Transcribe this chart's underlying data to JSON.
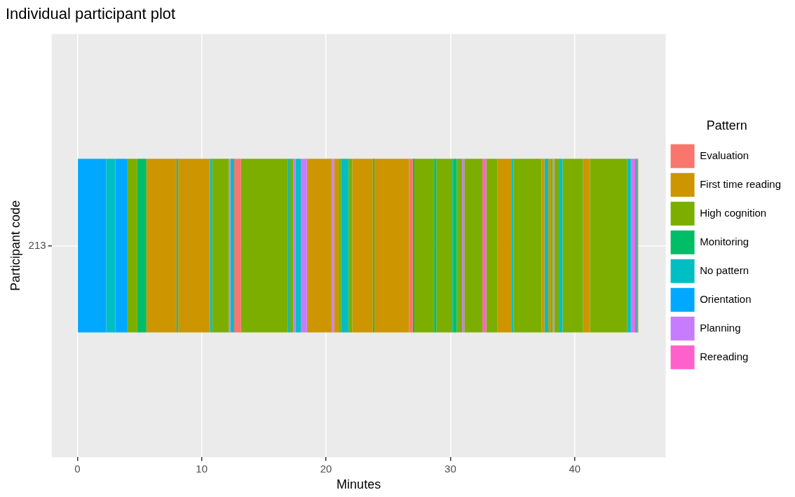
{
  "chart_data": {
    "type": "bar",
    "orientation": "horizontal",
    "stacked": true,
    "title": "Individual participant plot",
    "xlabel": "Minutes",
    "ylabel": "Participant code",
    "legend_title": "Pattern",
    "legend": "right",
    "grid": true,
    "categories": [
      "213"
    ],
    "xlim": [
      -2.07,
      47.32
    ],
    "xticks": [
      0,
      10,
      20,
      30,
      40
    ],
    "series": [
      {
        "name": "Evaluation",
        "color": "#f8766d",
        "values": [
          null
        ]
      },
      {
        "name": "First time reading",
        "color": "#cd9600",
        "values": [
          null
        ]
      },
      {
        "name": "High cognition",
        "color": "#7cae00",
        "values": [
          null
        ]
      },
      {
        "name": "Monitoring",
        "color": "#00be67",
        "values": [
          null
        ]
      },
      {
        "name": "No pattern",
        "color": "#00bfc4",
        "values": [
          null
        ]
      },
      {
        "name": "Orientation",
        "color": "#00a9ff",
        "values": [
          null
        ]
      },
      {
        "name": "Planning",
        "color": "#c77cff",
        "values": [
          null
        ]
      },
      {
        "name": "Rereading",
        "color": "#ff61cc",
        "values": [
          null
        ]
      },
      {
        "color": "#00a9ff",
        "values": [
          2.32
        ]
      },
      {
        "color": "#00bfc4",
        "values": [
          0.73
        ]
      },
      {
        "color": "#00a9ff",
        "values": [
          0.98
        ]
      },
      {
        "color": "#7cae00",
        "values": [
          0.79
        ]
      },
      {
        "color": "#00be67",
        "values": [
          0.73
        ]
      },
      {
        "color": "#cd9600",
        "values": [
          2.44
        ]
      },
      {
        "color": "#00bfc4",
        "values": [
          0.12
        ]
      },
      {
        "color": "#cd9600",
        "values": [
          2.56
        ]
      },
      {
        "color": "#00bfc4",
        "values": [
          0.18
        ]
      },
      {
        "color": "#7cae00",
        "values": [
          1.34
        ]
      },
      {
        "color": "#c77cff",
        "values": [
          0.12
        ]
      },
      {
        "color": "#00bfc4",
        "values": [
          0.3
        ]
      },
      {
        "color": "#f8766d",
        "values": [
          0.55
        ]
      },
      {
        "color": "#7cae00",
        "values": [
          3.78
        ]
      },
      {
        "color": "#00bfc4",
        "values": [
          0.18
        ]
      },
      {
        "color": "#7cae00",
        "values": [
          0.24
        ]
      },
      {
        "color": "#c77cff",
        "values": [
          0.18
        ]
      },
      {
        "color": "#00bfc4",
        "values": [
          0.43
        ]
      },
      {
        "color": "#c77cff",
        "values": [
          0.49
        ]
      },
      {
        "color": "#cd9600",
        "values": [
          2.01
        ]
      },
      {
        "color": "#c77cff",
        "values": [
          0.18
        ]
      },
      {
        "color": "#cd9600",
        "values": [
          0.37
        ]
      },
      {
        "color": "#7cae00",
        "values": [
          0.18
        ]
      },
      {
        "color": "#00bfc4",
        "values": [
          0.61
        ]
      },
      {
        "color": "#7cae00",
        "values": [
          0.3
        ]
      },
      {
        "color": "#cd9600",
        "values": [
          1.65
        ]
      },
      {
        "color": "#00be67",
        "values": [
          0.12
        ]
      },
      {
        "color": "#cd9600",
        "values": [
          2.8
        ]
      },
      {
        "color": "#f8766d",
        "values": [
          0.3
        ]
      },
      {
        "color": "#00be67",
        "values": [
          0.12
        ]
      },
      {
        "color": "#7cae00",
        "values": [
          1.59
        ]
      },
      {
        "color": "#00be67",
        "values": [
          0.18
        ]
      },
      {
        "color": "#7cae00",
        "values": [
          1.28
        ]
      },
      {
        "color": "#00bfc4",
        "values": [
          0.06
        ]
      },
      {
        "color": "#00be67",
        "values": [
          0.3
        ]
      },
      {
        "color": "#7cae00",
        "values": [
          0.43
        ]
      },
      {
        "color": "#c77cff",
        "values": [
          0.18
        ]
      },
      {
        "color": "#7cae00",
        "values": [
          1.46
        ]
      },
      {
        "color": "#ff61cc",
        "values": [
          0.3
        ]
      },
      {
        "color": "#7cae00",
        "values": [
          0.91
        ]
      },
      {
        "color": "#cd9600",
        "values": [
          1.1
        ]
      },
      {
        "color": "#00bfc4",
        "values": [
          0.18
        ]
      },
      {
        "color": "#7cae00",
        "values": [
          2.26
        ]
      },
      {
        "color": "#cd9600",
        "values": [
          0.24
        ]
      },
      {
        "color": "#00bfc4",
        "values": [
          0.3
        ]
      },
      {
        "color": "#cd9600",
        "values": [
          0.18
        ]
      },
      {
        "color": "#7cae00",
        "values": [
          0.18
        ]
      },
      {
        "color": "#c77cff",
        "values": [
          0.12
        ]
      },
      {
        "color": "#7cae00",
        "values": [
          0.37
        ]
      },
      {
        "color": "#00bfc4",
        "values": [
          0.3
        ]
      },
      {
        "color": "#7cae00",
        "values": [
          1.65
        ]
      },
      {
        "color": "#cd9600",
        "values": [
          0.55
        ]
      },
      {
        "color": "#7cae00",
        "values": [
          2.99
        ]
      },
      {
        "color": "#00bfc4",
        "values": [
          0.3
        ]
      },
      {
        "color": "#c77cff",
        "values": [
          0.24
        ]
      },
      {
        "color": "#ff61cc",
        "values": [
          0.12
        ]
      },
      {
        "color": "#00a9ff",
        "values": [
          0.12
        ]
      },
      {
        "color": "#cd9600",
        "values": [
          0.12
        ]
      }
    ]
  }
}
